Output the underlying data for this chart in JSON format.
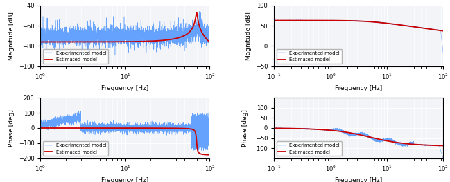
{
  "figsize": [
    6.49,
    2.63
  ],
  "dpi": 100,
  "blue_color": "#5599ff",
  "red_color": "#cc0000",
  "bg_color": "#f2f4f8",
  "plots": [
    {
      "xlabel": "Frequency [Hz]",
      "ylabel": "Magnitude [dB]",
      "xlim": [
        1,
        100
      ],
      "ylim": [
        -100,
        -40
      ],
      "yticks": [
        -100,
        -80,
        -60,
        -40
      ],
      "legend": [
        "Experimented model",
        "Estimated model"
      ],
      "legend_loc": "lower left"
    },
    {
      "xlabel": "Frequency [Hz]",
      "ylabel": "Magnitude [dB]",
      "xlim": [
        0.1,
        100
      ],
      "ylim": [
        -50,
        100
      ],
      "yticks": [
        -50,
        0,
        50,
        100
      ],
      "legend": [
        "Experimented model",
        "Estimated model"
      ],
      "legend_loc": "lower left"
    },
    {
      "xlabel": "Frequency [Hz]",
      "ylabel": "Phase [deg]",
      "xlim": [
        1,
        100
      ],
      "ylim": [
        -200,
        200
      ],
      "yticks": [
        -200,
        -100,
        0,
        100,
        200
      ],
      "legend": [
        "Experimented model",
        "Estimated model"
      ],
      "legend_loc": "lower left"
    },
    {
      "xlabel": "Frequency [Hz]",
      "ylabel": "Phase [deg]",
      "xlim": [
        0.1,
        100
      ],
      "ylim": [
        -150,
        150
      ],
      "yticks": [
        -100,
        -50,
        0,
        50,
        100
      ],
      "legend": [
        "Experimented model",
        "Estimated model"
      ],
      "legend_loc": "lower left"
    }
  ]
}
